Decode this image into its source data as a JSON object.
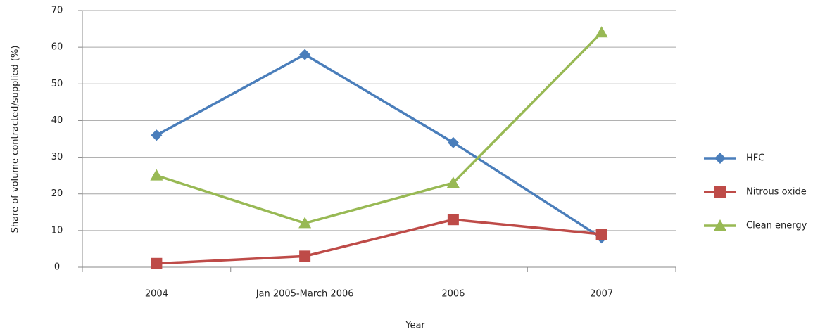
{
  "chart_data": {
    "type": "line",
    "categories": [
      "2004",
      "Jan 2005-March 2006",
      "2006",
      "2007"
    ],
    "series": [
      {
        "name": "HFC",
        "color": "#4a7ebb",
        "marker": "diamond",
        "values": [
          36,
          58,
          34,
          8
        ]
      },
      {
        "name": "Nitrous oxide",
        "color": "#be4b48",
        "marker": "square",
        "values": [
          1,
          3,
          13,
          9
        ]
      },
      {
        "name": "Clean energy",
        "color": "#98b954",
        "marker": "triangle",
        "values": [
          25,
          12,
          23,
          64
        ]
      }
    ],
    "ylim": [
      0,
      70
    ],
    "yticks": [
      0,
      10,
      20,
      30,
      40,
      50,
      60,
      70
    ],
    "grid": true,
    "xlabel": "Year",
    "ylabel": "Share of volume contracted/supplied (%)",
    "legend": "right"
  }
}
